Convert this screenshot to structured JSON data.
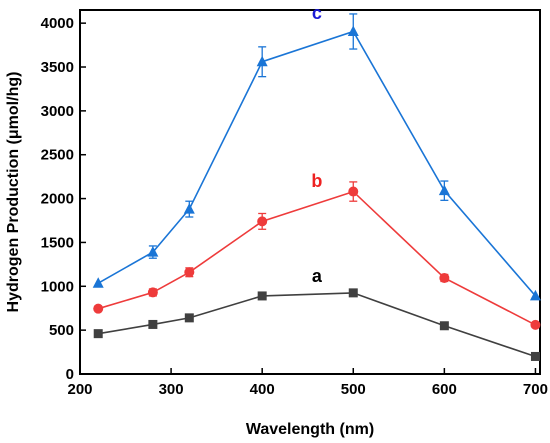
{
  "chart_data": {
    "type": "line",
    "xlabel": "Wavelength (nm)",
    "ylabel": "Hydrogen Production (μmol/hg)",
    "xlim": [
      200,
      705
    ],
    "ylim": [
      0,
      4150
    ],
    "xticks": [
      200,
      300,
      400,
      500,
      600,
      700
    ],
    "yticks": [
      0,
      500,
      1000,
      1500,
      2000,
      2500,
      3000,
      3500,
      4000
    ],
    "grid": false,
    "x": [
      220,
      280,
      320,
      400,
      500,
      600,
      700
    ],
    "series": [
      {
        "name": "a",
        "color": "#404040",
        "marker": "square",
        "values": [
          460,
          565,
          640,
          890,
          925,
          550,
          200
        ],
        "errors": [
          0,
          0,
          0,
          0,
          0,
          0,
          0
        ]
      },
      {
        "name": "b",
        "color": "#ee3b3b",
        "marker": "circle",
        "values": [
          745,
          930,
          1160,
          1740,
          2080,
          1095,
          560
        ],
        "errors": [
          0,
          40,
          50,
          90,
          110,
          40,
          0
        ]
      },
      {
        "name": "c",
        "color": "#1a75d6",
        "marker": "triangle",
        "values": [
          1035,
          1390,
          1880,
          3560,
          3905,
          2090,
          890
        ],
        "errors": [
          0,
          70,
          90,
          170,
          200,
          110,
          0
        ]
      }
    ],
    "annotations": [
      {
        "text": "a",
        "x": 460,
        "y": 1050,
        "color": "#000000"
      },
      {
        "text": "b",
        "x": 460,
        "y": 2130,
        "color": "#ee2222"
      },
      {
        "text": "c",
        "x": 460,
        "y": 4050,
        "color": "#1a1ad6"
      }
    ]
  }
}
